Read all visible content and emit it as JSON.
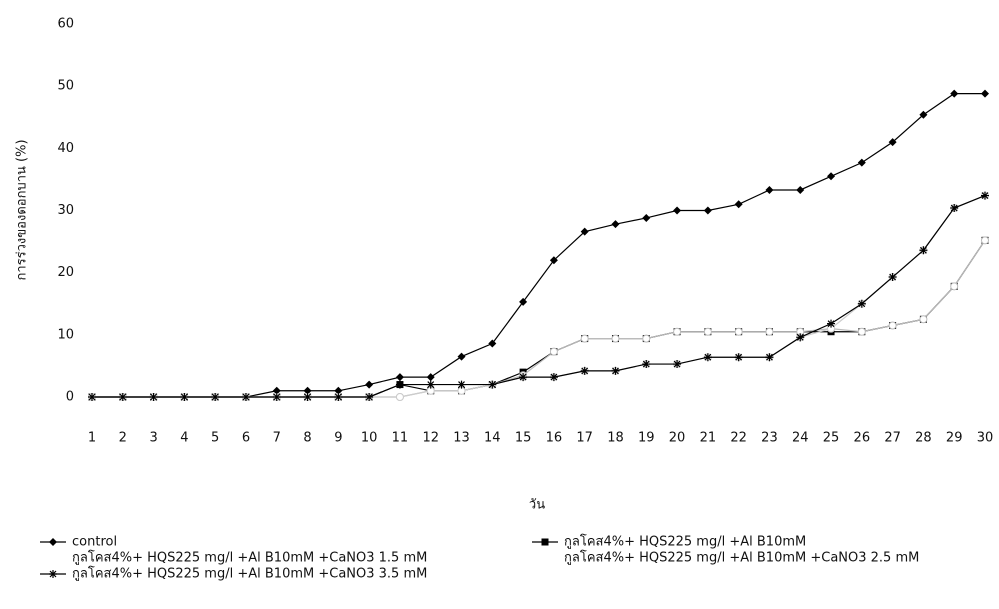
{
  "chart_data": {
    "type": "line",
    "x_label": "วัน",
    "y_label": "การร่วงของดอกบาน (%)",
    "categories": [
      "1",
      "2",
      "3",
      "4",
      "5",
      "6",
      "7",
      "8",
      "9",
      "10",
      "11",
      "12",
      "13",
      "14",
      "15",
      "16",
      "17",
      "18",
      "19",
      "20",
      "21",
      "22",
      "23",
      "24",
      "25",
      "26",
      "27",
      "28",
      "29",
      "30"
    ],
    "ylim": [
      0,
      60
    ],
    "yticks": [
      0,
      10,
      20,
      30,
      40,
      50,
      60
    ],
    "series": [
      {
        "name": "control",
        "color": "#000000",
        "marker": "diamond",
        "values": [
          0,
          0,
          0,
          0,
          0,
          0,
          1,
          1,
          1,
          2,
          3.2,
          3.2,
          6.5,
          8.6,
          15.3,
          22,
          26.6,
          27.8,
          28.8,
          30,
          30,
          31,
          33.3,
          33.3,
          35.5,
          37.7,
          41,
          45.4,
          48.8,
          48.8
        ]
      },
      {
        "name": "กูลโคส4%+ HQS225 mg/l +Al B10mM",
        "color": "#000000",
        "marker": "square",
        "values": [
          0,
          0,
          0,
          0,
          0,
          0,
          0,
          0,
          0,
          0,
          2,
          1,
          1,
          2,
          4,
          7.3,
          9.4,
          9.4,
          9.4,
          10.5,
          10.5,
          10.5,
          10.5,
          10.5,
          10.5,
          10.5,
          11.5,
          12.5,
          17.8,
          25.2
        ]
      },
      {
        "name": "กูลโคส4%+ HQS225 mg/l +Al B10mM +CaNO3 1.5 mM",
        "color": "#bbbbbb",
        "marker": "circle",
        "values": [
          0,
          0,
          0,
          0,
          0,
          0,
          0,
          0,
          0,
          0,
          0,
          1,
          1,
          2,
          3.5,
          7.3,
          9.4,
          9.4,
          9.4,
          10.5,
          10.5,
          10.5,
          10.5,
          10.5,
          11,
          10.5,
          11.5,
          12.5,
          17.8,
          25.2
        ]
      },
      {
        "name": "กูลโคส4%+ HQS225 mg/l +Al B10mM +CaNO3 2.5 mM",
        "color": "#cccccc",
        "marker": "circle",
        "values": [
          0,
          0,
          0,
          0,
          0,
          0,
          0,
          0,
          0,
          0,
          0,
          1,
          1,
          2,
          3.2,
          3.2,
          4.2,
          4.2,
          5.3,
          5.3,
          6.4,
          6.4,
          6.4,
          9.6,
          11,
          15,
          19.3,
          23.6,
          30.4,
          32.4
        ]
      },
      {
        "name": "กูลโคส4%+ HQS225 mg/l +Al B10mM +CaNO3 3.5 mM",
        "color": "#000000",
        "marker": "star",
        "values": [
          0,
          0,
          0,
          0,
          0,
          0,
          0,
          0,
          0,
          0,
          2,
          2,
          2,
          2,
          3.2,
          3.2,
          4.2,
          4.2,
          5.3,
          5.3,
          6.4,
          6.4,
          6.4,
          9.6,
          11.8,
          15,
          19.3,
          23.6,
          30.4,
          32.4
        ]
      }
    ]
  }
}
